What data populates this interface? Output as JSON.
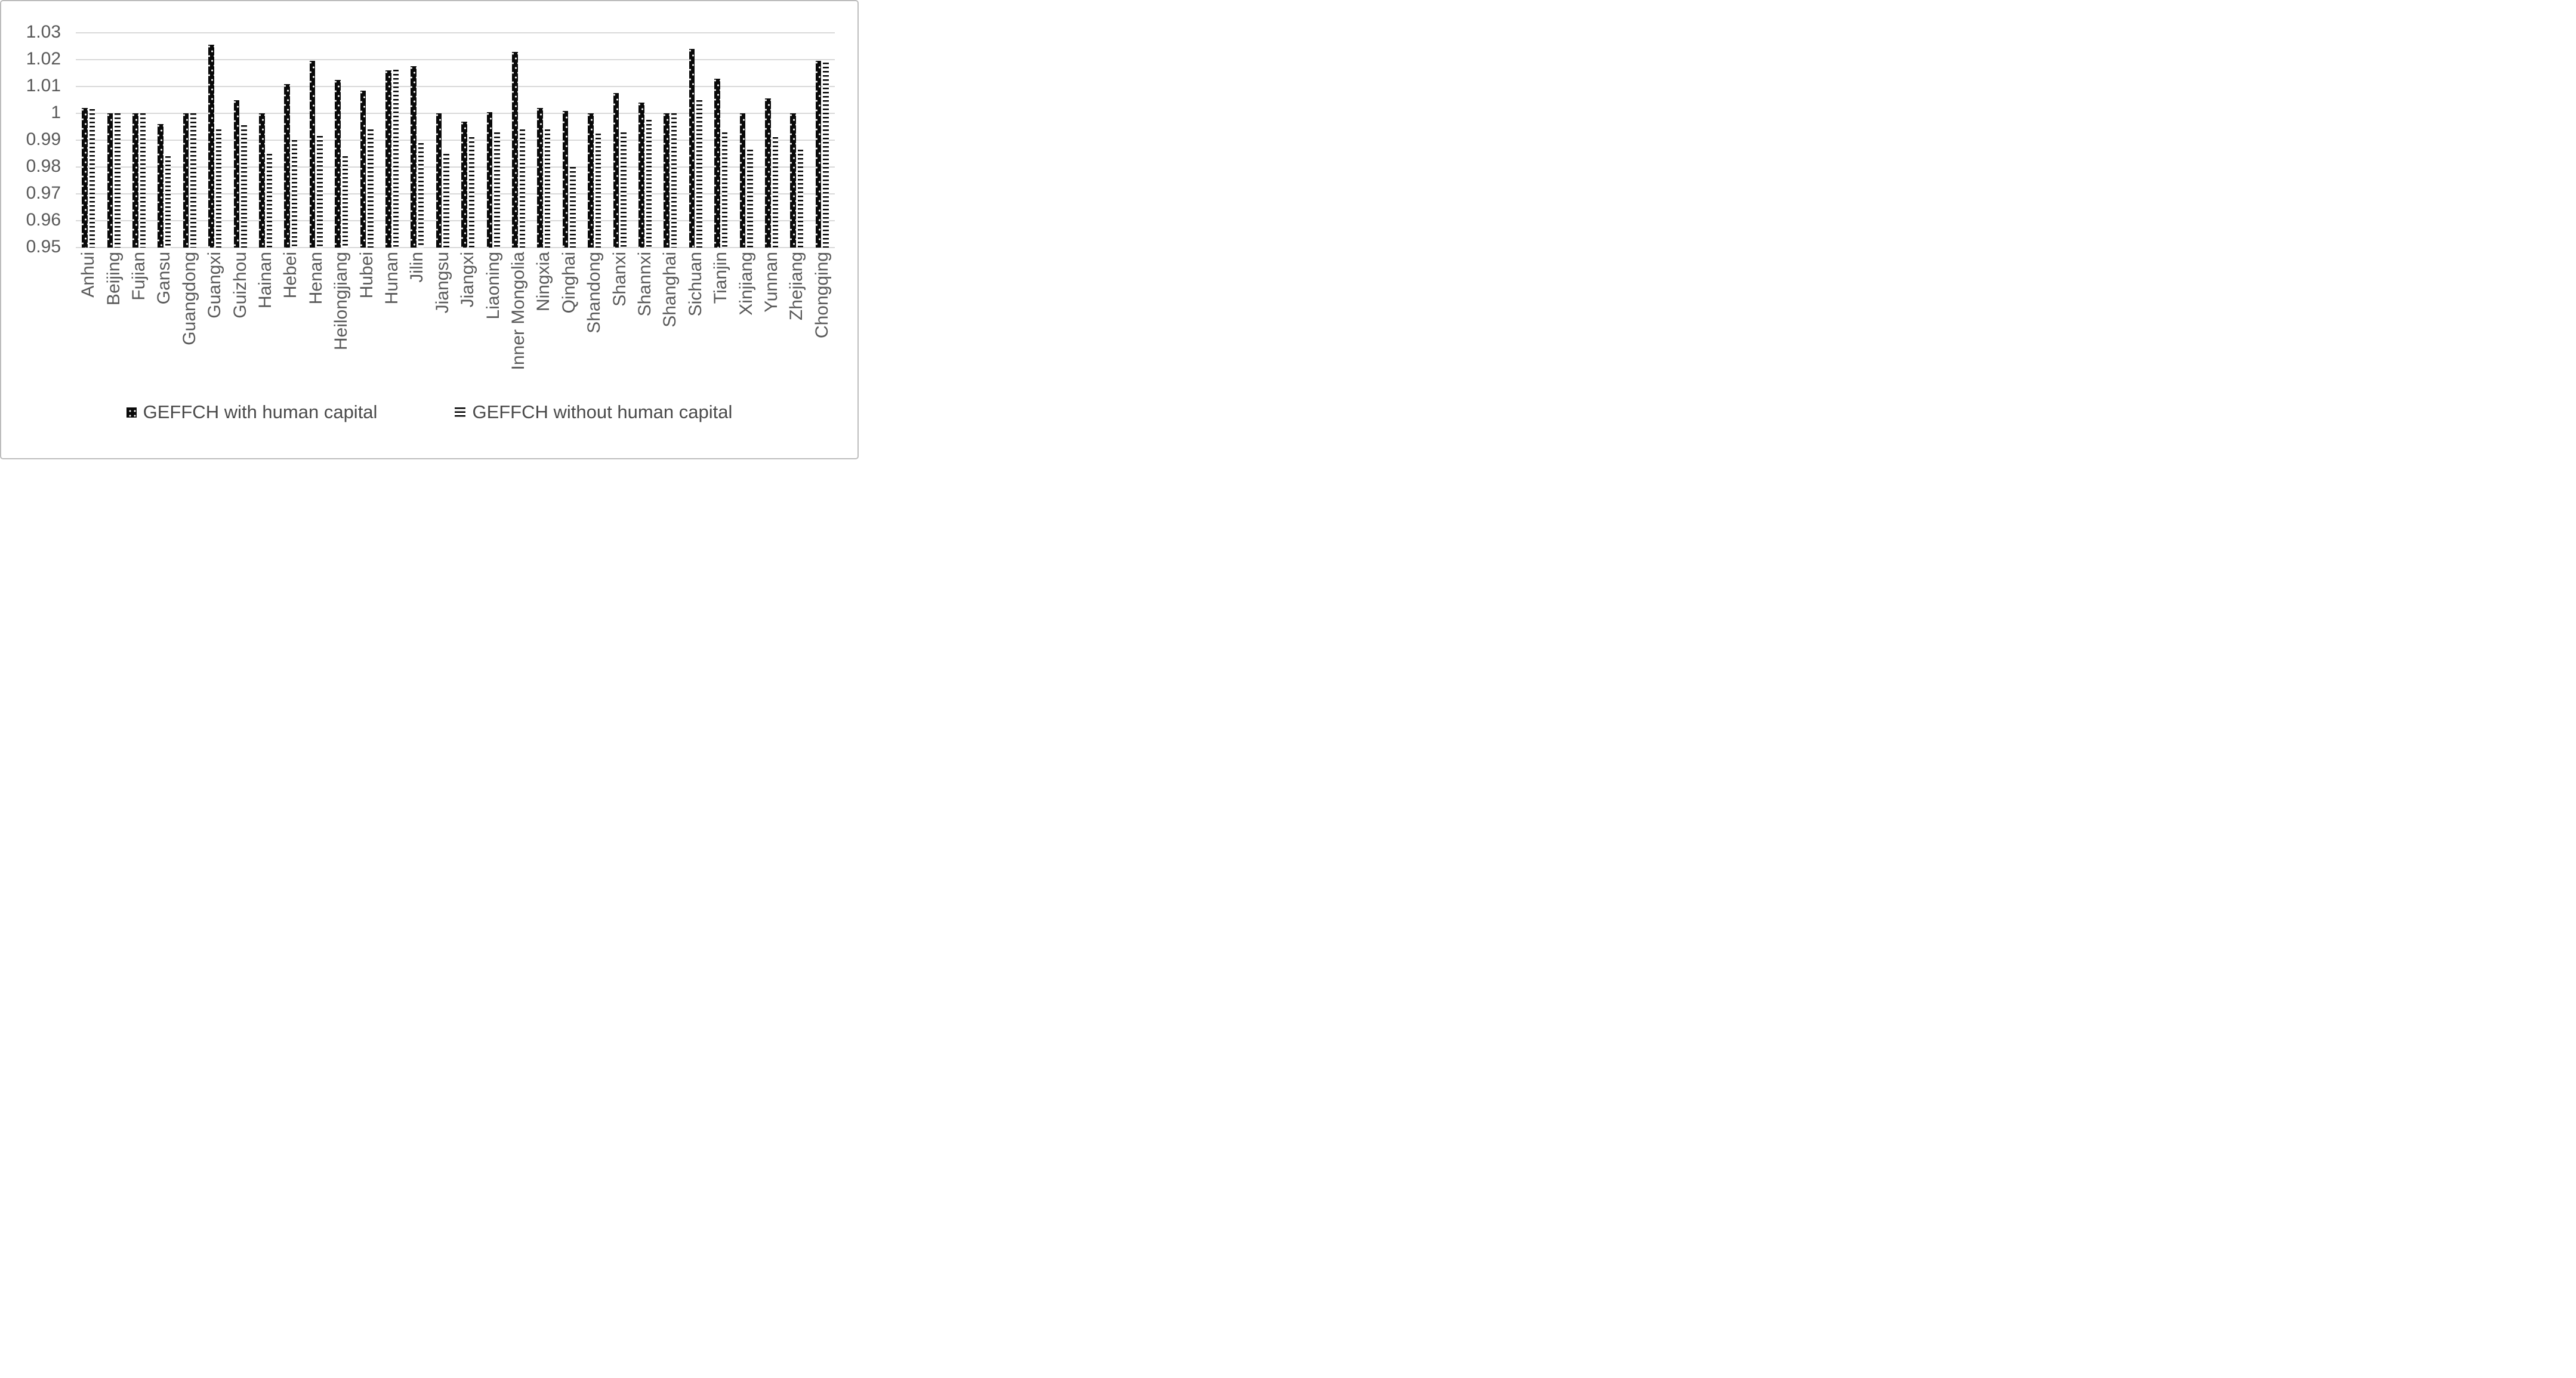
{
  "chart_data": {
    "type": "bar",
    "title": "",
    "xlabel": "",
    "ylabel": "",
    "ylim": [
      0.95,
      1.03
    ],
    "ytick_step": 0.01,
    "ytick_labels": [
      "1.03",
      "1.02",
      "1.01",
      "1",
      "0.99",
      "0.98",
      "0.97",
      "0.96",
      "0.95"
    ],
    "grid": "horizontal",
    "legend_position": "bottom",
    "categories": [
      "Anhui",
      "Beijing",
      "Fujian",
      "Gansu",
      "Guangdong",
      "Guangxi",
      "Guizhou",
      "Hainan",
      "Hebei",
      "Henan",
      "Heilongjiang",
      "Hubei",
      "Hunan",
      "Jilin",
      "Jiangsu",
      "Jiangxi",
      "Liaoning",
      "Inner Mongolia",
      "Ningxia",
      "Qinghai",
      "Shandong",
      "Shanxi",
      "Shannxi",
      "Shanghai",
      "Sichuan",
      "Tianjin",
      "Xinjiang",
      "Yunnan",
      "Zhejiang",
      "Chongqing"
    ],
    "series": [
      {
        "name": "GEFFCH with human capital",
        "pattern": "black-with-white-dots",
        "values": [
          1.002,
          1.0,
          1.0,
          0.996,
          1.0,
          1.0255,
          1.005,
          1.0,
          1.011,
          1.0195,
          1.0125,
          1.0085,
          1.016,
          1.0175,
          1.0,
          0.997,
          1.0005,
          1.023,
          1.002,
          1.001,
          1.0,
          1.0075,
          1.004,
          1.0,
          1.024,
          1.013,
          1.0,
          1.0055,
          1.0,
          1.0195
        ]
      },
      {
        "name": "GEFFCH without human capital",
        "pattern": "horizontal-black-lines",
        "values": [
          1.0015,
          1.0,
          1.0,
          0.984,
          1.0,
          0.994,
          0.9955,
          0.985,
          0.99,
          0.9915,
          0.984,
          0.994,
          1.0162,
          0.989,
          0.985,
          0.9912,
          0.9928,
          0.994,
          0.994,
          0.98,
          0.9925,
          0.993,
          0.9975,
          1.0,
          1.005,
          0.993,
          0.9865,
          0.9912,
          0.9865,
          1.019
        ]
      }
    ],
    "colors": {
      "bar_fill": "#0a0a0a",
      "gridline": "#d9d9d9",
      "axis_text": "#595959",
      "legend_text": "#4a4a4a",
      "figure_border": "#bdbdbd",
      "background": "#ffffff"
    }
  }
}
